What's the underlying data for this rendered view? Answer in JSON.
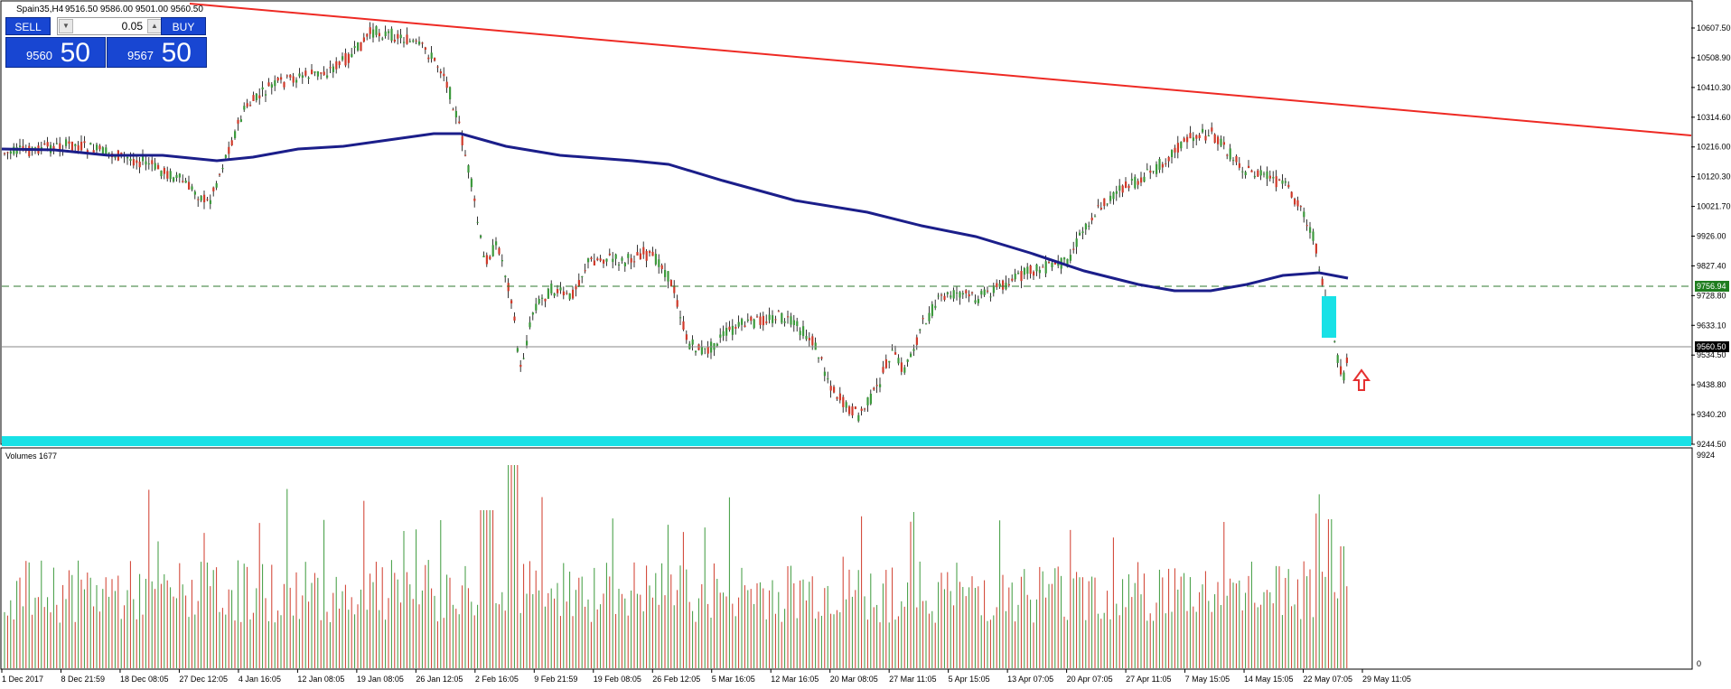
{
  "window": {
    "symbol_title": "Spain35,H4",
    "ohlc": "9516.50 9586.00 9501.00 9560.50"
  },
  "trade_panel": {
    "sell_label": "SELL",
    "buy_label": "BUY",
    "lot": "0.05",
    "bid_small": "9560",
    "bid_big": "50",
    "ask_small": "9567",
    "ask_big": "50"
  },
  "price_axis": {
    "labels": [
      "10607.50",
      "10508.90",
      "10410.30",
      "10314.60",
      "10216.00",
      "10120.30",
      "10021.70",
      "9926.00",
      "9827.40",
      "9728.80",
      "9633.10",
      "9534.50",
      "9438.80",
      "9340.20",
      "9244.50"
    ],
    "highlight_level": "9756.94",
    "current_price": "9560.50"
  },
  "volume_panel": {
    "title": "Volumes 1677",
    "axis_max": "9924",
    "axis_min": "0"
  },
  "time_axis": {
    "labels": [
      "1 Dec 2017",
      "8 Dec 21:59",
      "18 Dec 08:05",
      "27 Dec 12:05",
      "4 Jan 16:05",
      "12 Jan 08:05",
      "19 Jan 08:05",
      "26 Jan 12:05",
      "2 Feb 16:05",
      "9 Feb 21:59",
      "19 Feb 08:05",
      "26 Feb 12:05",
      "5 Mar 16:05",
      "12 Mar 16:05",
      "20 Mar 08:05",
      "27 Mar 11:05",
      "5 Apr 15:05",
      "13 Apr 07:05",
      "20 Apr 07:05",
      "27 Apr 11:05",
      "7 May 15:05",
      "14 May 15:05",
      "22 May 07:05",
      "29 May 11:05"
    ]
  },
  "colors": {
    "bull": "#3c9a3c",
    "bear": "#d03a2a",
    "trendline": "#ee2a24",
    "moving_average": "#1b1e8a",
    "support_zone": "#18e1e6",
    "horizontal_dash": "#2f7a2f",
    "level_badge": "#1f7d1f",
    "arrow": "#e53030"
  },
  "icons": [
    "chart-pattern-up-arrow-icon",
    "lot-decrease-arrow-icon",
    "lot-increase-arrow-icon"
  ]
}
